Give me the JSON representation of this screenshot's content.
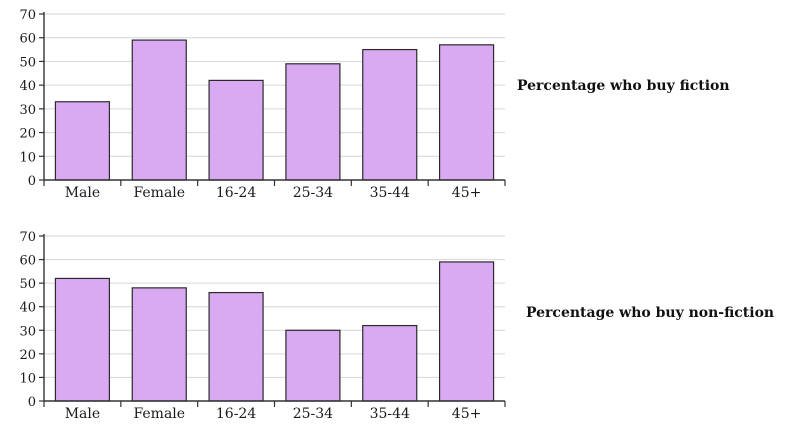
{
  "colors": {
    "bar_fill": "#d9a9f2",
    "bar_stroke": "#2a2a2a",
    "axis": "#333333",
    "grid": "#d6d6d6"
  },
  "chart_data": [
    {
      "type": "bar",
      "title": "Percentage who buy fiction",
      "categories": [
        "Male",
        "Female",
        "16-24",
        "25-34",
        "35-44",
        "45+"
      ],
      "values": [
        33,
        59,
        42,
        49,
        55,
        57
      ],
      "ylim": [
        0,
        70
      ],
      "yticks": [
        0,
        10,
        20,
        30,
        40,
        50,
        60,
        70
      ],
      "grid": true,
      "legend": "none"
    },
    {
      "type": "bar",
      "title": "Percentage who buy non-fiction",
      "categories": [
        "Male",
        "Female",
        "16-24",
        "25-34",
        "35-44",
        "45+"
      ],
      "values": [
        52,
        48,
        46,
        30,
        32,
        59
      ],
      "ylim": [
        0,
        70
      ],
      "yticks": [
        0,
        10,
        20,
        30,
        40,
        50,
        60,
        70
      ],
      "grid": true,
      "legend": "none"
    }
  ]
}
